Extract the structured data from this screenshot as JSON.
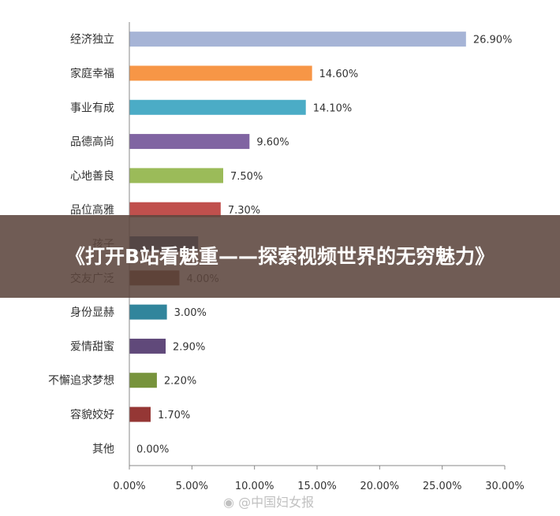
{
  "chart_data": {
    "type": "bar",
    "orientation": "horizontal",
    "categories": [
      "经济独立",
      "家庭幸福",
      "事业有成",
      "品德高尚",
      "心地善良",
      "品位高雅",
      "孩子",
      "交友广泛",
      "身份显赫",
      "爱情甜蜜",
      "不懈追求梦想",
      "容貌姣好",
      "其他"
    ],
    "values": [
      26.9,
      14.6,
      14.1,
      9.6,
      7.5,
      7.3,
      5.5,
      4.0,
      3.0,
      2.9,
      2.2,
      1.7,
      0.0
    ],
    "data_labels": [
      "26.90%",
      "14.60%",
      "14.10%",
      "9.60%",
      "7.50%",
      "7.30%",
      "",
      "4.00%",
      "3.00%",
      "2.90%",
      "2.20%",
      "1.70%",
      "0.00%"
    ],
    "colors": [
      "#a6b4d6",
      "#f79646",
      "#4bacc6",
      "#8064a2",
      "#9bbb59",
      "#c0504d",
      "#1f497d",
      "#6a3618",
      "#31859c",
      "#60497a",
      "#77933c",
      "#953735",
      "#4f81bd"
    ],
    "x_ticks": [
      "0.00%",
      "5.00%",
      "10.00%",
      "15.00%",
      "20.00%",
      "25.00%",
      "30.00%"
    ],
    "xlim": [
      0,
      30
    ],
    "grid": false,
    "legend": "none"
  },
  "banner": {
    "title": "《打开B站看魅重——探索视频世界的无穷魅力》"
  },
  "watermark": {
    "text": "@中国妇女报"
  }
}
